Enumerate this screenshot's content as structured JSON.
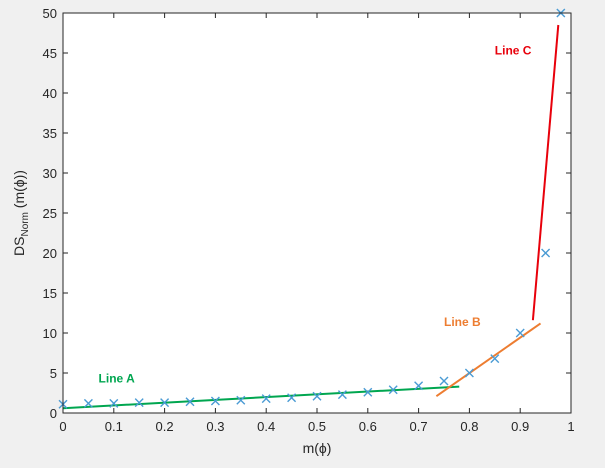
{
  "chart_data": {
    "type": "scatter",
    "title": "",
    "xlabel": "m(ϕ)",
    "ylabel": {
      "prefix": "DS",
      "subscript": "Norm",
      "suffix": " (m(ϕ))"
    },
    "xlim": [
      0,
      1
    ],
    "ylim": [
      0,
      50
    ],
    "x_ticks": [
      0,
      0.1,
      0.2,
      0.3,
      0.4,
      0.5,
      0.6,
      0.7,
      0.8,
      0.9,
      1
    ],
    "y_ticks": [
      0,
      5,
      10,
      15,
      20,
      25,
      30,
      35,
      40,
      45,
      50
    ],
    "grid": false,
    "series": [
      {
        "kind": "markers",
        "marker": "x",
        "color": "#4a9bd4",
        "points": [
          [
            0,
            1.1
          ],
          [
            0.05,
            1.2
          ],
          [
            0.1,
            1.2
          ],
          [
            0.15,
            1.3
          ],
          [
            0.2,
            1.3
          ],
          [
            0.25,
            1.4
          ],
          [
            0.3,
            1.5
          ],
          [
            0.35,
            1.6
          ],
          [
            0.4,
            1.8
          ],
          [
            0.45,
            1.9
          ],
          [
            0.5,
            2.1
          ],
          [
            0.55,
            2.3
          ],
          [
            0.6,
            2.6
          ],
          [
            0.65,
            2.9
          ],
          [
            0.7,
            3.4
          ],
          [
            0.75,
            4.0
          ],
          [
            0.8,
            5.0
          ],
          [
            0.85,
            6.8
          ],
          [
            0.9,
            10.0
          ],
          [
            0.95,
            20.0
          ],
          [
            0.98,
            50.0
          ]
        ]
      },
      {
        "kind": "line",
        "name": "Line A",
        "color": "#00a650",
        "points": [
          [
            0,
            0.6
          ],
          [
            0.78,
            3.3
          ]
        ],
        "label_at": [
          0.07,
          3.8
        ]
      },
      {
        "kind": "line",
        "name": "Line B",
        "color": "#ed7d31",
        "points": [
          [
            0.735,
            2.1
          ],
          [
            0.94,
            11.2
          ]
        ],
        "label_at": [
          0.75,
          10.9
        ]
      },
      {
        "kind": "line",
        "name": "Line C",
        "color": "#e8000b",
        "points": [
          [
            0.925,
            11.6
          ],
          [
            0.975,
            48.5
          ]
        ],
        "label_at": [
          0.85,
          44.8
        ]
      }
    ]
  }
}
